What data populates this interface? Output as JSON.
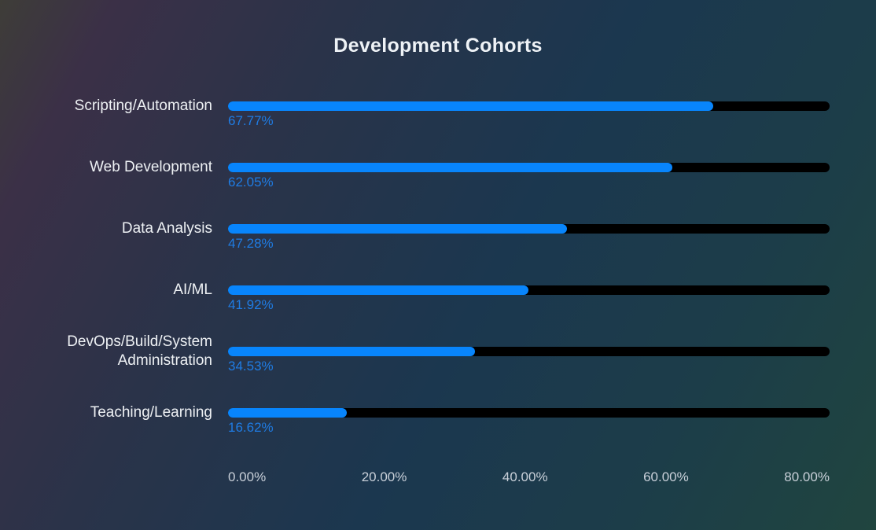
{
  "chart_data": {
    "type": "bar",
    "orientation": "horizontal",
    "title": "Development Cohorts",
    "categories": [
      "Scripting/Automation",
      "Web Development",
      "Data Analysis",
      "AI/ML",
      "DevOps/Build/System Administration",
      "Teaching/Learning"
    ],
    "values": [
      67.77,
      62.05,
      47.28,
      41.92,
      34.53,
      16.62
    ],
    "value_labels": [
      "67.77%",
      "62.05%",
      "47.28%",
      "41.92%",
      "34.53%",
      "16.62%"
    ],
    "x_tick_labels": [
      "0.00%",
      "20.00%",
      "40.00%",
      "60.00%",
      "80.00%"
    ],
    "x_tick_values": [
      0,
      20,
      40,
      60,
      80
    ],
    "xlim": [
      0,
      84
    ],
    "xlabel": "",
    "ylabel": "",
    "legend": "none",
    "grid": "off",
    "colors": {
      "bar_fill": "#0885fc",
      "bar_track": "#000000",
      "value_label": "#1f7ce4",
      "category_label": "#eef1f4",
      "axis_label": "#c9d0d9",
      "title": "#eef2f6"
    }
  }
}
